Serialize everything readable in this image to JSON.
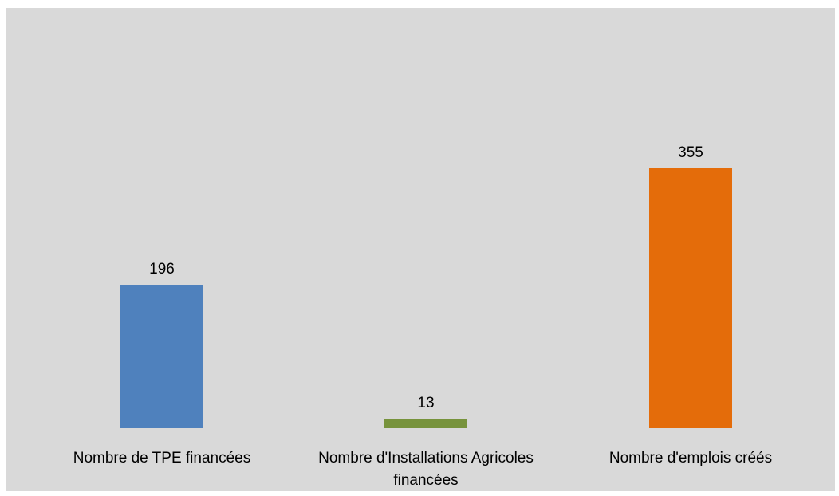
{
  "chart_data": {
    "type": "bar",
    "categories": [
      [
        "Nombre de TPE financées"
      ],
      [
        "Nombre d'Installations Agricoles",
        "financées"
      ],
      [
        "Nombre d'emplois créés"
      ]
    ],
    "values": [
      196,
      13,
      355
    ],
    "colors": [
      "#4f81bd",
      "#77933c",
      "#e46c0a"
    ],
    "background": "#d9d9d9",
    "ylim": [
      0,
      400
    ],
    "grid": false,
    "legend": false,
    "title": "",
    "xlabel": "",
    "ylabel": ""
  }
}
